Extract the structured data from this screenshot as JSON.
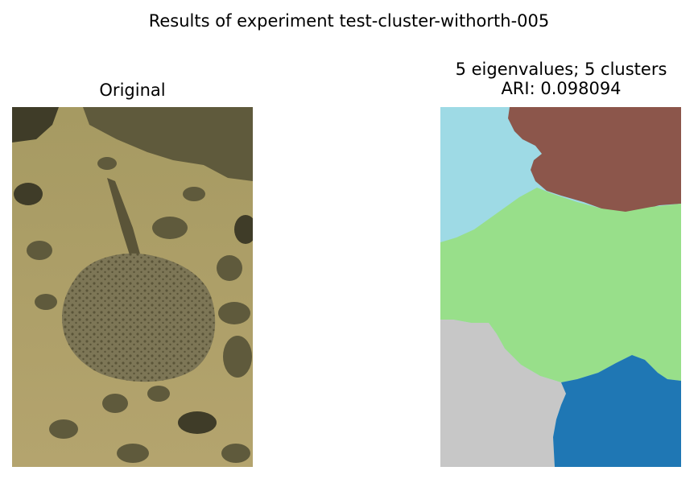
{
  "figure": {
    "title": "Results of experiment test-cluster-withorth-005"
  },
  "original": {
    "title": "Original",
    "palette": {
      "sand": "#a69a62",
      "sand_light": "#b4a46e",
      "rock": "#5f5a3c",
      "rock_dark": "#3f3c28",
      "ray": "#7d7656",
      "ray_spot": "#5a5438"
    }
  },
  "segmentation": {
    "title_line1": "5 eigenvalues; 5 clusters",
    "title_line2": "ARI: 0.098094",
    "clusters": [
      {
        "color": "#9edae5"
      },
      {
        "color": "#8c564b"
      },
      {
        "color": "#98df8a"
      },
      {
        "color": "#c7c7c7"
      },
      {
        "color": "#1f77b4"
      }
    ]
  }
}
